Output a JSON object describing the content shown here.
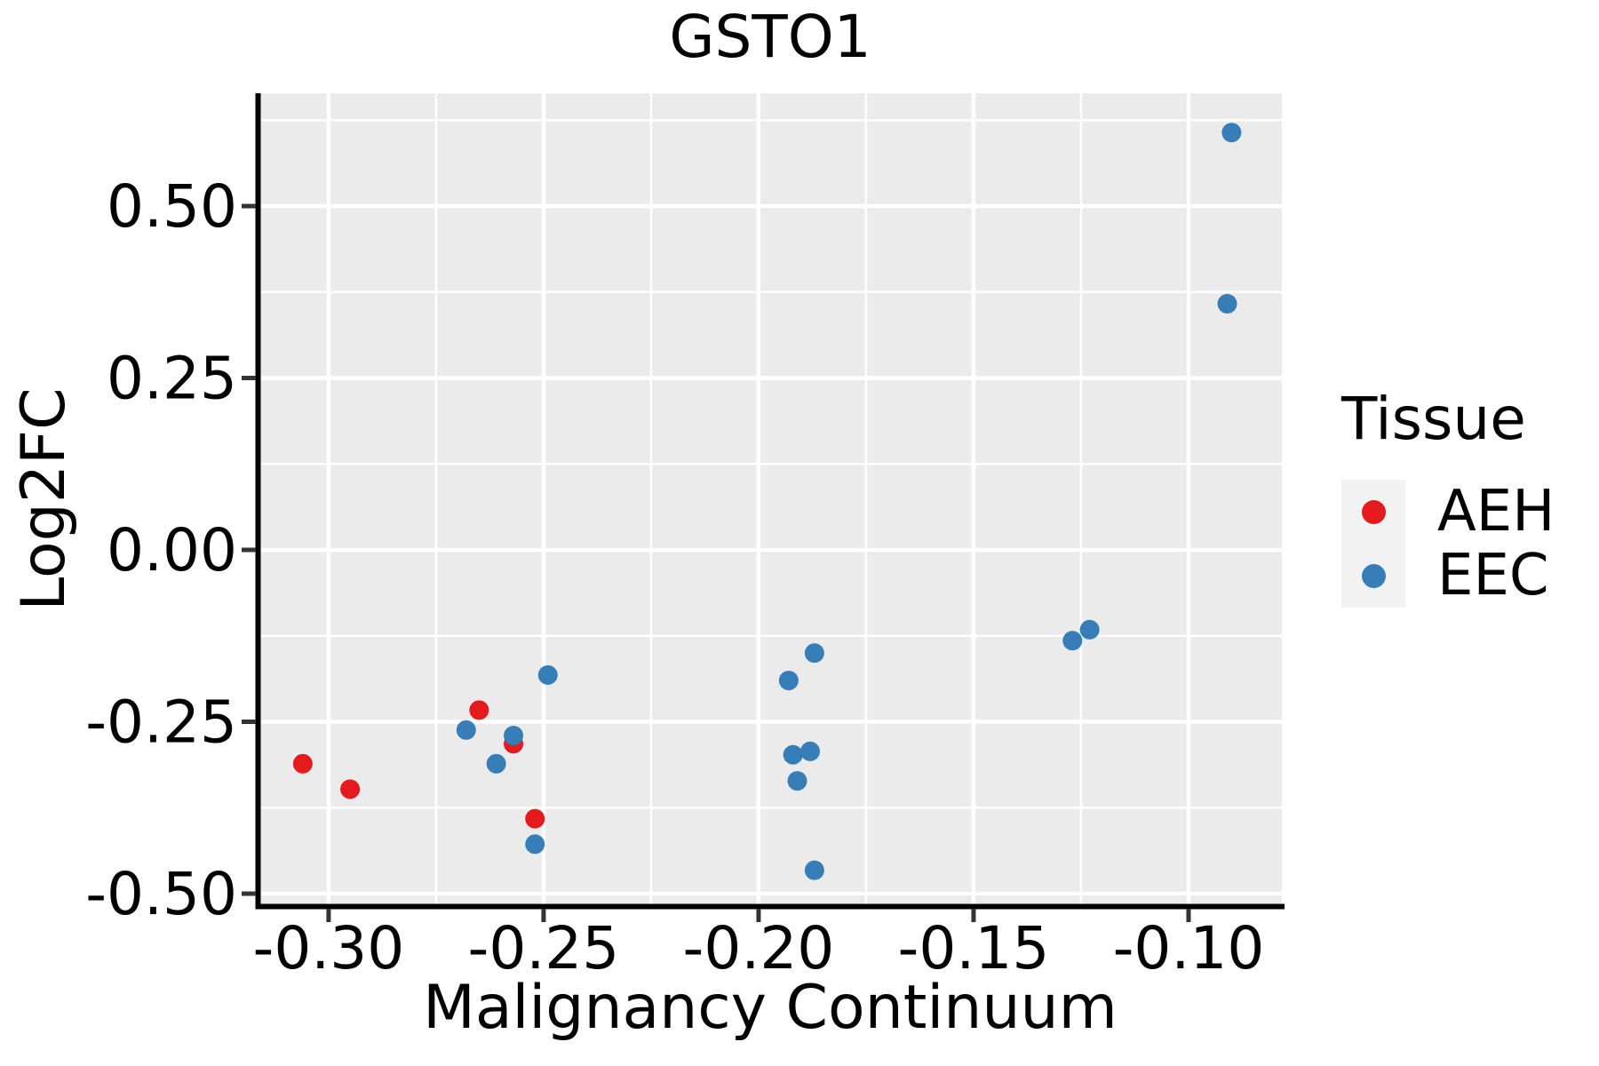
{
  "chart_data": {
    "type": "scatter",
    "title": "GSTO1",
    "xlabel": "Malignancy Continuum",
    "ylabel": "Log2FC",
    "legend_title": "Tissue",
    "legend_position": "right",
    "grid": true,
    "panel_background": "#EBEBEB",
    "grid_color": "#FFFFFF",
    "axis_line_color": "#000000",
    "tick_color": "#333333",
    "xlim": [
      -0.3163,
      -0.0783
    ],
    "ylim": [
      -0.5155,
      0.6641
    ],
    "x_ticks": {
      "values": [
        -0.3,
        -0.25,
        -0.2,
        -0.15,
        -0.1
      ],
      "labels": [
        "-0.30",
        "-0.25",
        "-0.20",
        "-0.15",
        "-0.10"
      ],
      "minor_values": [
        -0.275,
        -0.225,
        -0.175,
        -0.125
      ]
    },
    "y_ticks": {
      "values": [
        0.5,
        0.25,
        0.0,
        -0.25,
        -0.5
      ],
      "labels": [
        "0.50",
        "0.25",
        "0.00",
        "-0.25",
        "-0.50"
      ],
      "minor_values": [
        0.625,
        0.375,
        0.125,
        -0.125,
        -0.375
      ]
    },
    "series": [
      {
        "name": "AEH",
        "color": "#E41A1C",
        "points": [
          [
            -0.306,
            -0.311
          ],
          [
            -0.295,
            -0.348
          ],
          [
            -0.265,
            -0.233
          ],
          [
            -0.257,
            -0.282
          ],
          [
            -0.252,
            -0.391
          ]
        ]
      },
      {
        "name": "EEC",
        "color": "#377EB8",
        "points": [
          [
            -0.268,
            -0.262
          ],
          [
            -0.261,
            -0.311
          ],
          [
            -0.257,
            -0.27
          ],
          [
            -0.252,
            -0.428
          ],
          [
            -0.249,
            -0.182
          ],
          [
            -0.193,
            -0.19
          ],
          [
            -0.192,
            -0.298
          ],
          [
            -0.191,
            -0.336
          ],
          [
            -0.188,
            -0.293
          ],
          [
            -0.187,
            -0.15
          ],
          [
            -0.187,
            -0.466
          ],
          [
            -0.127,
            -0.132
          ],
          [
            -0.123,
            -0.116
          ],
          [
            -0.091,
            0.358
          ],
          [
            -0.09,
            0.607
          ]
        ]
      }
    ]
  }
}
